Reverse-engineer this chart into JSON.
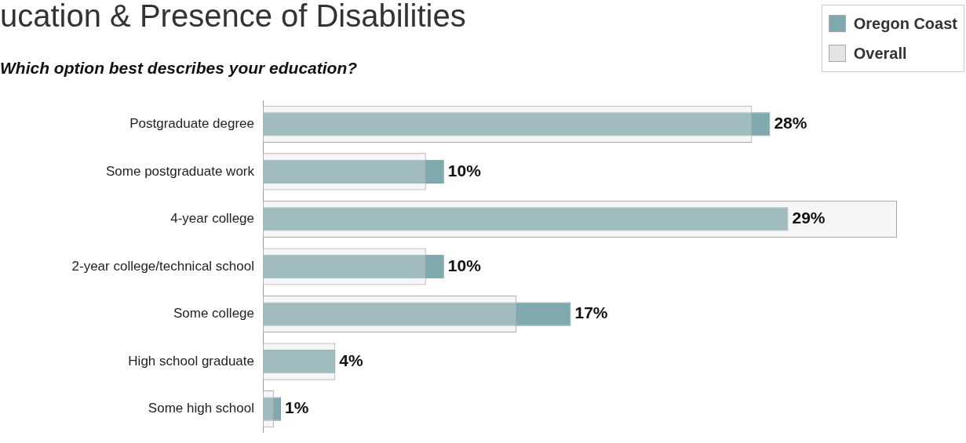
{
  "chart_data": {
    "type": "bar",
    "orientation": "horizontal",
    "title": "ucation & Presence of Disabilities",
    "subtitle": "Which option best describes your education?",
    "categories": [
      "Postgraduate degree",
      "Some postgraduate work",
      "4-year college",
      "2-year college/technical school",
      "Some college",
      "High school graduate",
      "Some high school"
    ],
    "legend": "top right",
    "tick_labels": "y",
    "series": [
      {
        "name": "Oregon Coast",
        "color": "#7fa9ad",
        "values": [
          28,
          10,
          29,
          10,
          17,
          4,
          1
        ],
        "value_labels": [
          "28%",
          "10%",
          "29%",
          "10%",
          "17%",
          "4%",
          "1%"
        ]
      },
      {
        "name": "Overall",
        "color": "#e3e5e4",
        "values": [
          27,
          9,
          35,
          9,
          14,
          4,
          0.6
        ]
      }
    ]
  }
}
